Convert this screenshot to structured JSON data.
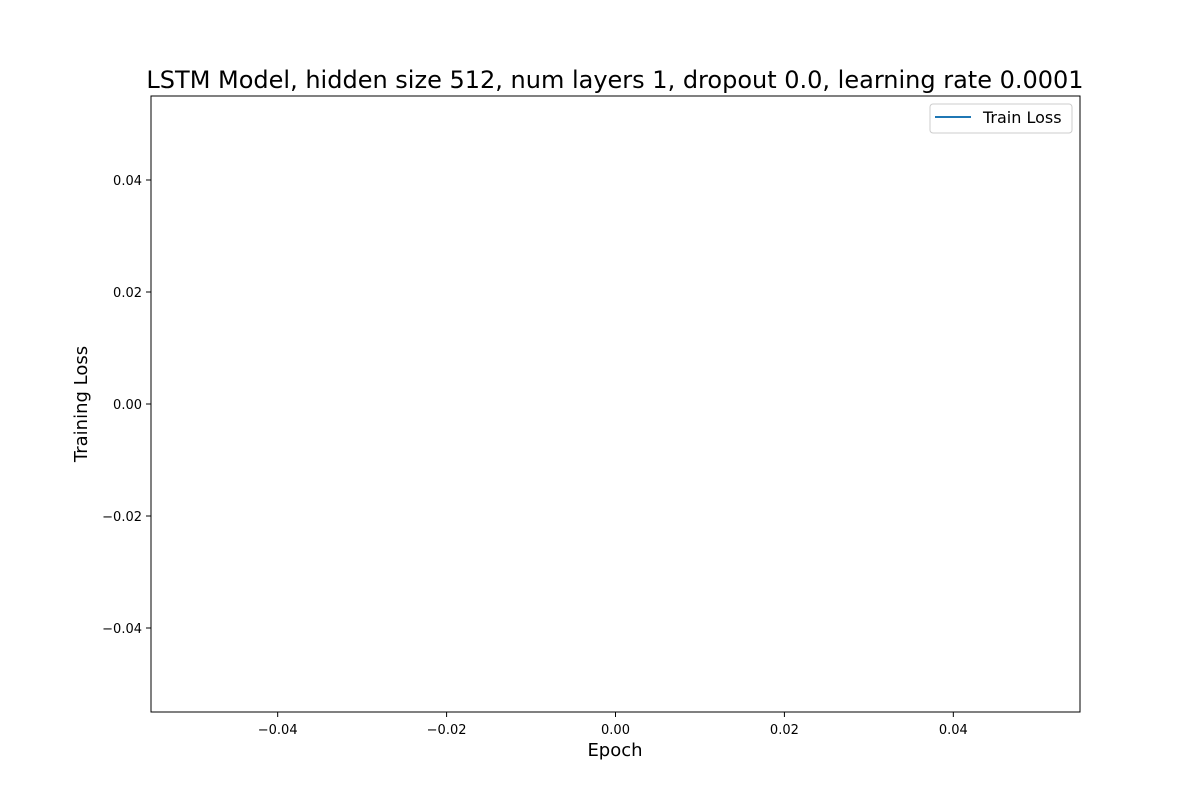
{
  "chart_data": {
    "type": "line",
    "title": "LSTM Model, hidden size 512, num layers 1, dropout 0.0, learning rate 0.0001",
    "xlabel": "Epoch",
    "ylabel": "Training Loss",
    "xlim": [
      -0.055,
      0.055
    ],
    "ylim": [
      -0.055,
      0.055
    ],
    "x_ticks": [
      -0.04,
      -0.02,
      0.0,
      0.02,
      0.04
    ],
    "y_ticks": [
      -0.04,
      -0.02,
      0.0,
      0.02,
      0.04
    ],
    "x_tick_labels": [
      "−0.04",
      "−0.02",
      "0.00",
      "0.02",
      "0.04"
    ],
    "y_tick_labels": [
      "−0.04",
      "−0.02",
      "0.00",
      "0.02",
      "0.04"
    ],
    "grid": false,
    "legend_position": "top-right",
    "series": [
      {
        "name": "Train Loss",
        "color": "#1f77b4",
        "x": [],
        "y": []
      }
    ]
  }
}
